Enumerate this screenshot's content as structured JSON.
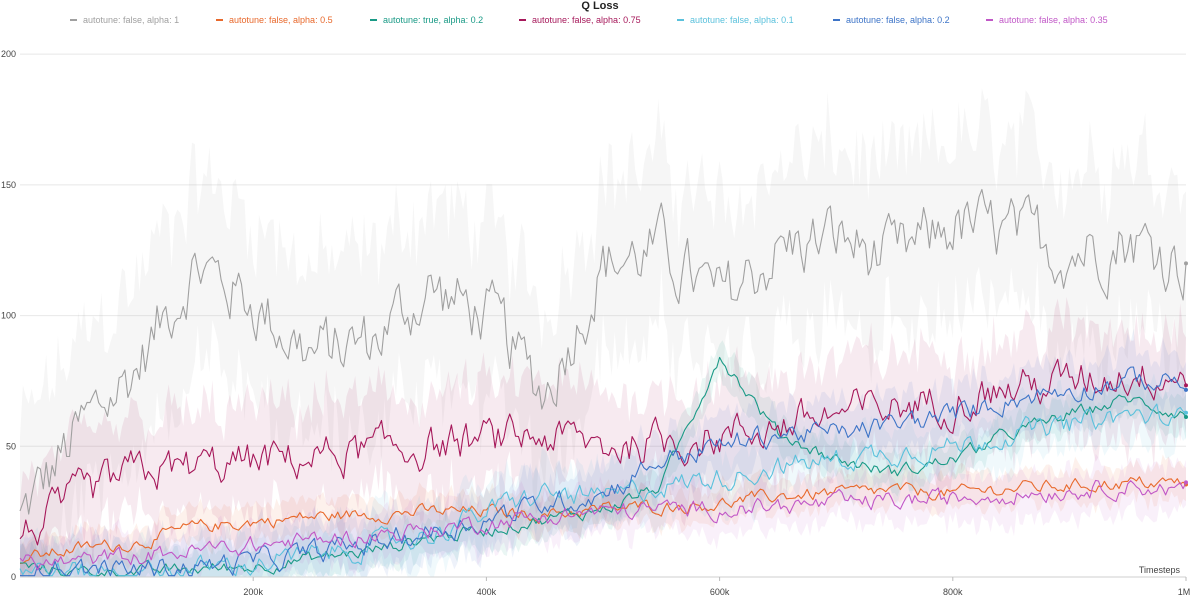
{
  "chart_data": {
    "type": "line",
    "title": "Q Loss",
    "xlabel": "Timesteps",
    "ylabel": "",
    "xlim": [
      0,
      1000000
    ],
    "ylim": [
      0,
      210
    ],
    "x_ticks": [
      200000,
      400000,
      600000,
      800000,
      1000000
    ],
    "x_tick_labels": [
      "200k",
      "400k",
      "600k",
      "800k",
      "1M"
    ],
    "y_ticks": [
      0,
      50,
      100,
      150,
      200
    ],
    "y_tick_labels": [
      "0",
      "50",
      "100",
      "150",
      "200"
    ],
    "grid": true,
    "legend_position": "top",
    "x": [
      0,
      50000,
      100000,
      150000,
      200000,
      250000,
      300000,
      350000,
      400000,
      450000,
      500000,
      550000,
      600000,
      650000,
      700000,
      750000,
      800000,
      850000,
      900000,
      950000,
      1000000
    ],
    "series": [
      {
        "name": "autotune: false, alpha: 1",
        "color": "#a0a0a0",
        "band": 30,
        "values": [
          22,
          55,
          80,
          120,
          105,
          85,
          90,
          110,
          100,
          70,
          120,
          125,
          105,
          125,
          130,
          120,
          135,
          130,
          125,
          130,
          120
        ]
      },
      {
        "name": "autotune: false, alpha: 0.5",
        "color": "#e8692c",
        "band": 6,
        "values": [
          7,
          11,
          13,
          19,
          21,
          23,
          24,
          25,
          25,
          24,
          26,
          27,
          28,
          31,
          32,
          33,
          32,
          34,
          35,
          36,
          36
        ]
      },
      {
        "name": "autotune: true, alpha: 0.2",
        "color": "#1a9a86",
        "band": 6,
        "values": [
          4,
          2,
          2,
          3,
          4,
          7,
          10,
          15,
          18,
          22,
          26,
          35,
          85,
          55,
          45,
          40,
          45,
          55,
          62,
          68,
          62
        ]
      },
      {
        "name": "autotune: false, alpha: 0.75",
        "color": "#a6185a",
        "band": 18,
        "values": [
          15,
          30,
          40,
          42,
          44,
          46,
          48,
          50,
          52,
          54,
          50,
          52,
          54,
          58,
          62,
          65,
          68,
          72,
          75,
          78,
          78
        ]
      },
      {
        "name": "autotune: false, alpha: 0.1",
        "color": "#5ac1dc",
        "band": 10,
        "values": [
          3,
          2,
          2,
          3,
          5,
          8,
          12,
          16,
          25,
          32,
          30,
          35,
          38,
          42,
          45,
          48,
          50,
          55,
          58,
          62,
          60
        ]
      },
      {
        "name": "autotune: false, alpha: 0.2",
        "color": "#3d74c7",
        "band": 10,
        "values": [
          4,
          3,
          3,
          4,
          6,
          9,
          13,
          17,
          22,
          28,
          32,
          45,
          50,
          55,
          55,
          58,
          62,
          68,
          72,
          75,
          75
        ]
      },
      {
        "name": "autotune: false, alpha: 0.35",
        "color": "#c157c7",
        "band": 8,
        "values": [
          5,
          6,
          8,
          10,
          12,
          14,
          16,
          18,
          21,
          23,
          25,
          26,
          26,
          27,
          28,
          29,
          30,
          32,
          33,
          35,
          33
        ]
      }
    ]
  }
}
